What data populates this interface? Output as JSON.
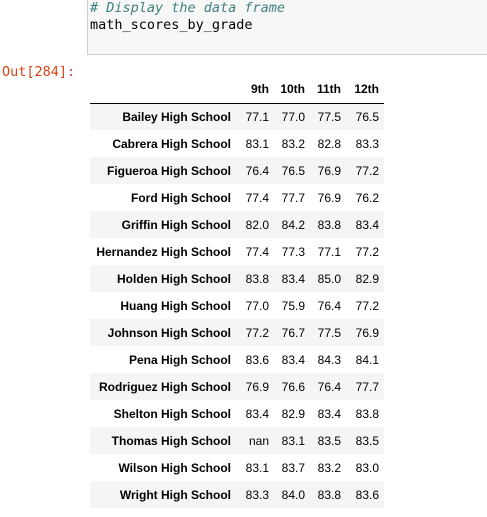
{
  "code_cell": {
    "comment": "# Display the data frame",
    "code": "math_scores_by_grade"
  },
  "output_prompt": "Out[284]:",
  "table": {
    "columns": [
      "9th",
      "10th",
      "11th",
      "12th"
    ],
    "rows": [
      {
        "index": "Bailey High School",
        "values": [
          "77.1",
          "77.0",
          "77.5",
          "76.5"
        ]
      },
      {
        "index": "Cabrera High School",
        "values": [
          "83.1",
          "83.2",
          "82.8",
          "83.3"
        ]
      },
      {
        "index": "Figueroa High School",
        "values": [
          "76.4",
          "76.5",
          "76.9",
          "77.2"
        ]
      },
      {
        "index": "Ford High School",
        "values": [
          "77.4",
          "77.7",
          "76.9",
          "76.2"
        ]
      },
      {
        "index": "Griffin High School",
        "values": [
          "82.0",
          "84.2",
          "83.8",
          "83.4"
        ]
      },
      {
        "index": "Hernandez High School",
        "values": [
          "77.4",
          "77.3",
          "77.1",
          "77.2"
        ]
      },
      {
        "index": "Holden High School",
        "values": [
          "83.8",
          "83.4",
          "85.0",
          "82.9"
        ]
      },
      {
        "index": "Huang High School",
        "values": [
          "77.0",
          "75.9",
          "76.4",
          "77.2"
        ]
      },
      {
        "index": "Johnson High School",
        "values": [
          "77.2",
          "76.7",
          "77.5",
          "76.9"
        ]
      },
      {
        "index": "Pena High School",
        "values": [
          "83.6",
          "83.4",
          "84.3",
          "84.1"
        ]
      },
      {
        "index": "Rodriguez High School",
        "values": [
          "76.9",
          "76.6",
          "76.4",
          "77.7"
        ]
      },
      {
        "index": "Shelton High School",
        "values": [
          "83.4",
          "82.9",
          "83.4",
          "83.8"
        ]
      },
      {
        "index": "Thomas High School",
        "values": [
          "nan",
          "83.1",
          "83.5",
          "83.5"
        ]
      },
      {
        "index": "Wilson High School",
        "values": [
          "83.1",
          "83.7",
          "83.2",
          "83.0"
        ]
      },
      {
        "index": "Wright High School",
        "values": [
          "83.3",
          "84.0",
          "83.8",
          "83.6"
        ]
      }
    ]
  }
}
